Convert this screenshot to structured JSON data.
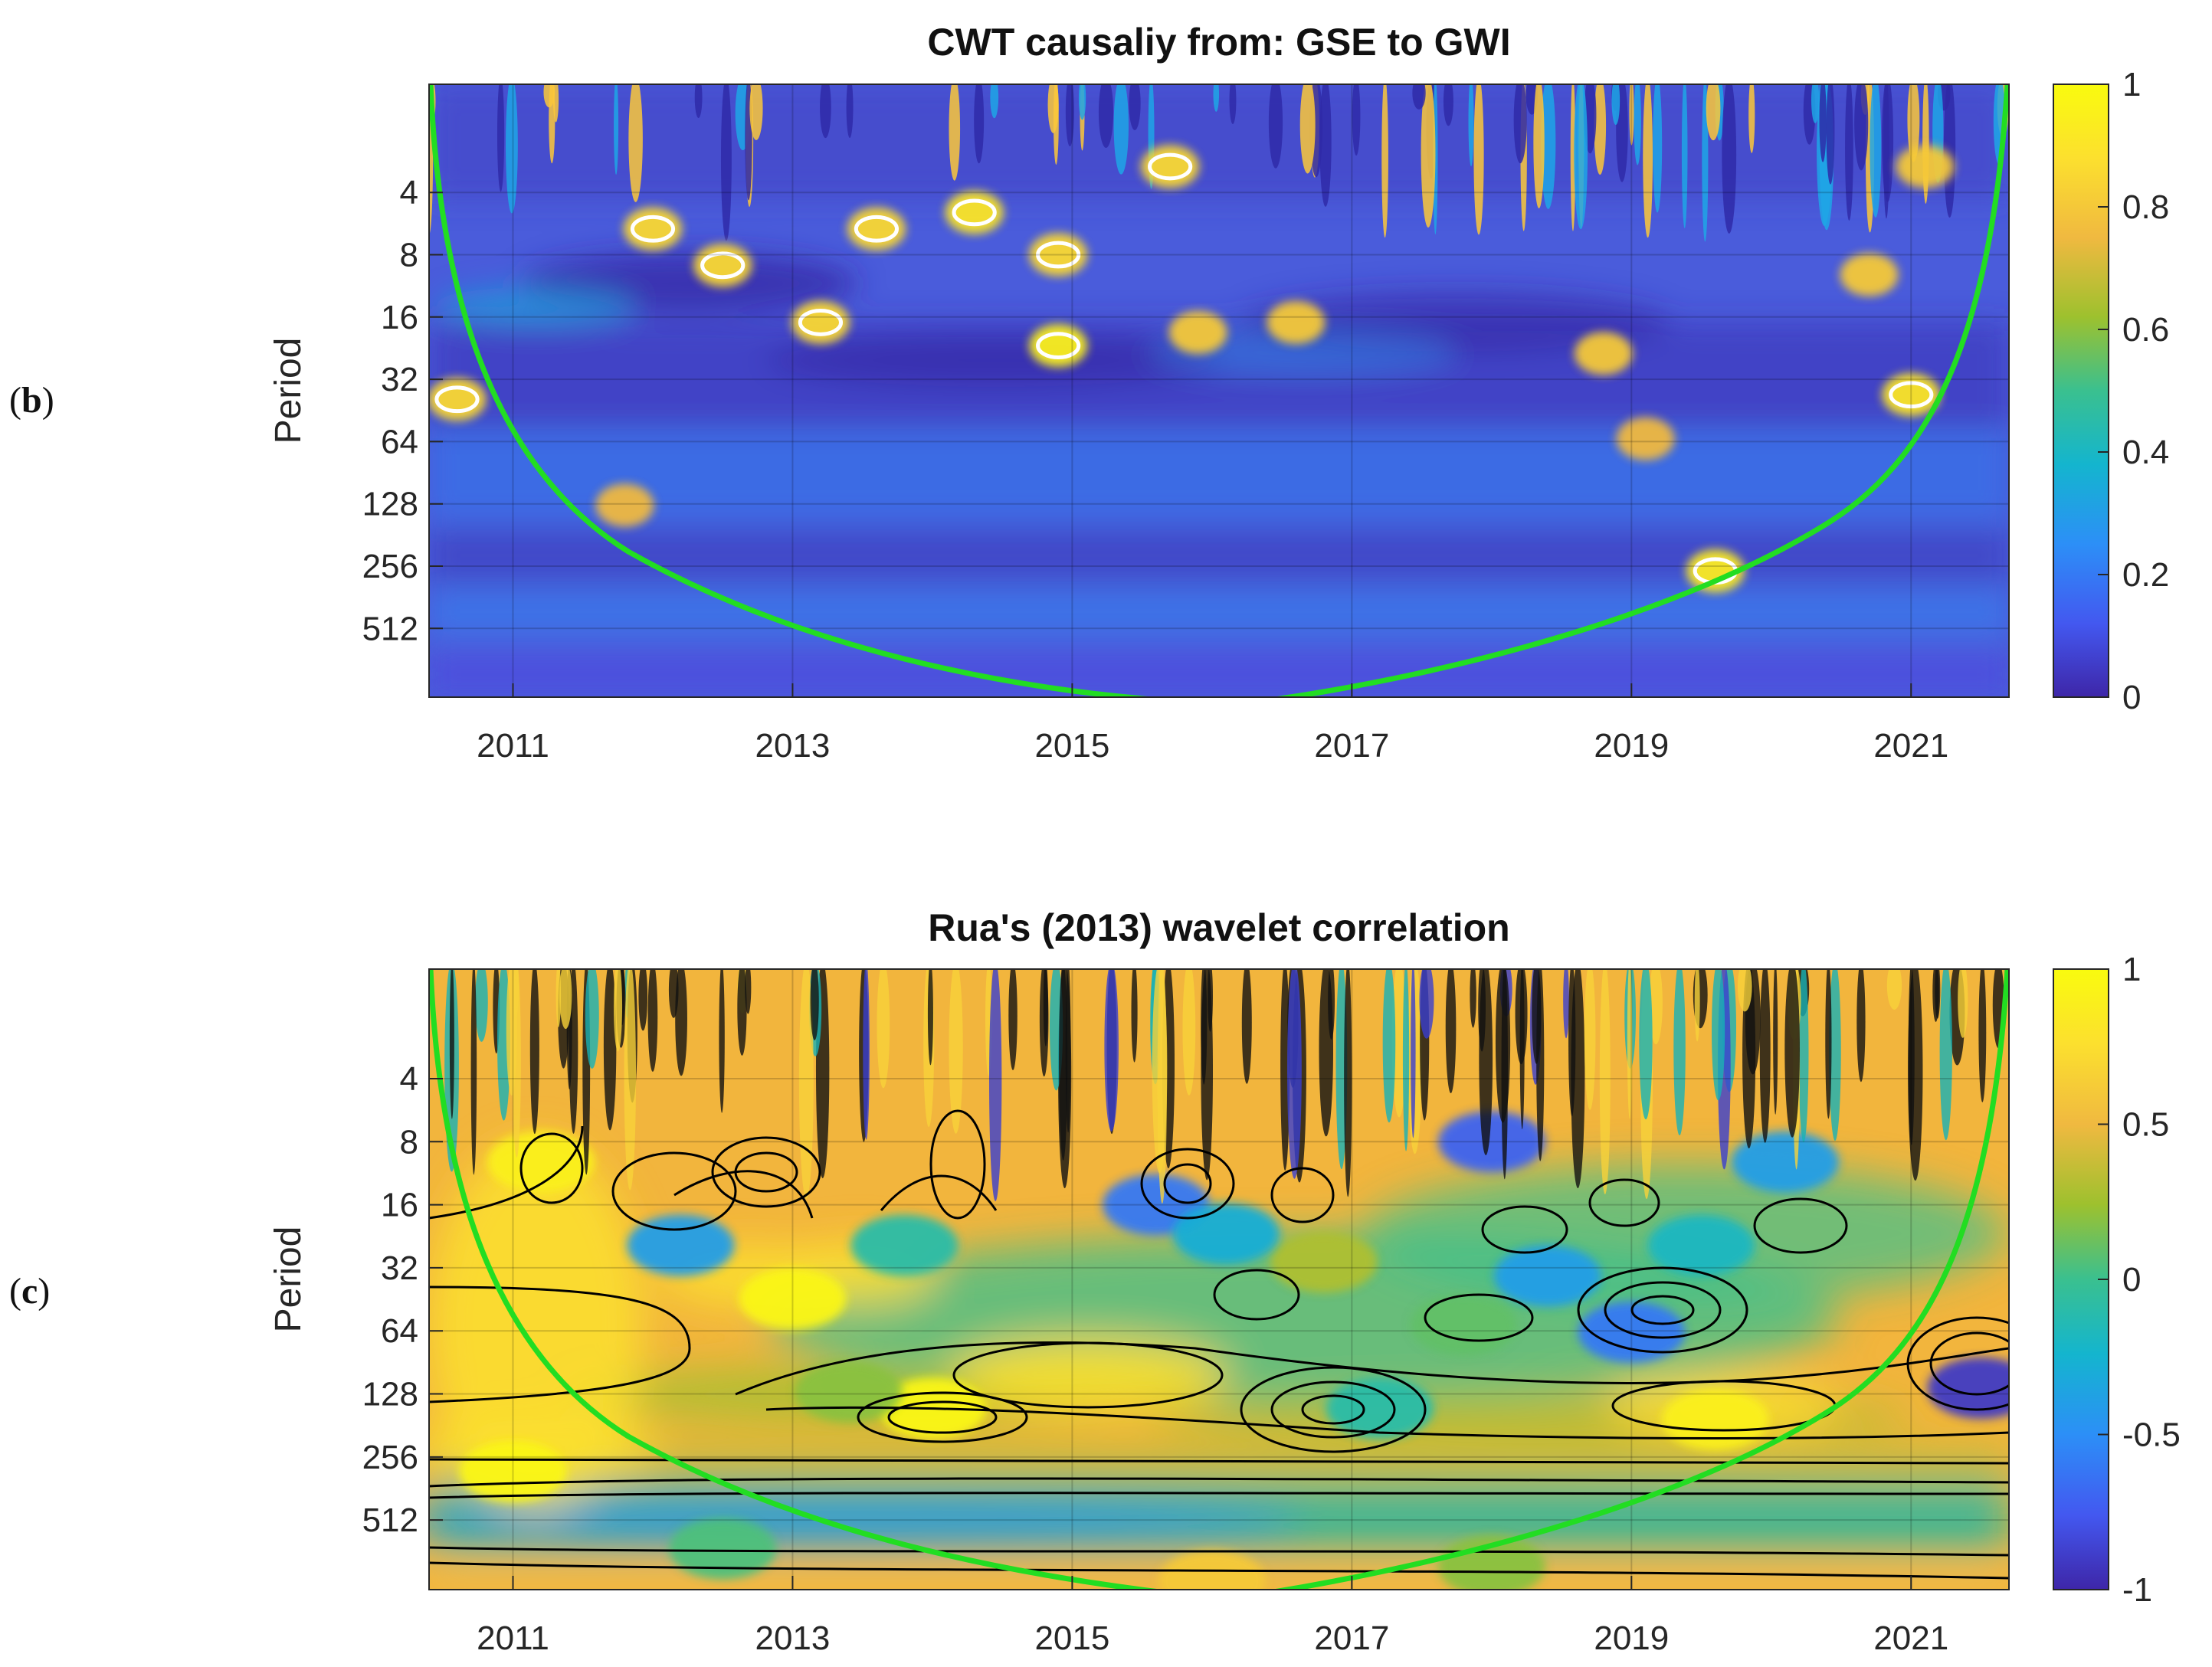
{
  "panels": [
    {
      "label_open": "(",
      "label_letter": "b",
      "label_close": ")"
    },
    {
      "label_open": "(",
      "label_letter": "c",
      "label_close": ")"
    }
  ],
  "chart_data": [
    {
      "type": "heatmap",
      "title": "CWT causaliy from: GSE to GWI",
      "xlabel": "",
      "ylabel": "Period",
      "xlim": [
        2010.4,
        2021.7
      ],
      "x_ticks": [
        "2011",
        "2013",
        "2015",
        "2017",
        "2019",
        "2021"
      ],
      "y_ticks": [
        "4",
        "8",
        "16",
        "32",
        "64",
        "128",
        "256",
        "512"
      ],
      "y_scale": "log2",
      "ylim_period": [
        1.2,
        1100
      ],
      "colorbar_ticks": [
        "0",
        "0.2",
        "0.4",
        "0.6",
        "0.8",
        "1"
      ],
      "colorbar_range": [
        0,
        1
      ],
      "colormap": [
        "#3e26a8",
        "#4358f0",
        "#2c8ff7",
        "#14b5ce",
        "#3ac08f",
        "#9dc12e",
        "#f0b940",
        "#fce02e",
        "#f9fb0e"
      ],
      "background_color": "#4a5cdb",
      "cone_color": "#22dd22",
      "significance_contour_color": "#ffffff",
      "hot_spots": [
        {
          "x": 2014.9,
          "period": 22,
          "value": 0.95
        },
        {
          "x": 2021.0,
          "period": 38,
          "value": 0.9
        },
        {
          "x": 2019.6,
          "period": 270,
          "value": 0.92
        },
        {
          "x": 2010.6,
          "period": 40,
          "value": 0.85
        },
        {
          "x": 2013.2,
          "period": 17,
          "value": 0.85
        },
        {
          "x": 2016.6,
          "period": 17,
          "value": 0.8
        },
        {
          "x": 2015.9,
          "period": 19,
          "value": 0.8
        },
        {
          "x": 2018.8,
          "period": 24,
          "value": 0.8
        },
        {
          "x": 2019.1,
          "period": 62,
          "value": 0.75
        },
        {
          "x": 2011.8,
          "period": 130,
          "value": 0.75
        },
        {
          "x": 2012.5,
          "period": 9,
          "value": 0.85
        },
        {
          "x": 2012.0,
          "period": 6,
          "value": 0.85
        },
        {
          "x": 2014.3,
          "period": 5,
          "value": 0.9
        },
        {
          "x": 2014.9,
          "period": 8,
          "value": 0.85
        },
        {
          "x": 2013.6,
          "period": 6,
          "value": 0.85
        },
        {
          "x": 2015.7,
          "period": 3,
          "value": 0.85
        },
        {
          "x": 2021.1,
          "period": 3,
          "value": 0.8
        },
        {
          "x": 2020.7,
          "period": 10,
          "value": 0.8
        }
      ]
    },
    {
      "type": "heatmap",
      "title": "Rua's (2013) wavelet correlation",
      "xlabel": "",
      "ylabel": "Period",
      "xlim": [
        2010.4,
        2021.7
      ],
      "x_ticks": [
        "2011",
        "2013",
        "2015",
        "2017",
        "2019",
        "2021"
      ],
      "y_ticks": [
        "4",
        "8",
        "16",
        "32",
        "64",
        "128",
        "256",
        "512"
      ],
      "y_scale": "log2",
      "ylim_period": [
        1.2,
        1100
      ],
      "colorbar_ticks": [
        "-1",
        "-0.5",
        "0",
        "0.5",
        "1"
      ],
      "colorbar_range": [
        -1,
        1
      ],
      "colormap": [
        "#3e26a8",
        "#4358f0",
        "#2c8ff7",
        "#14b5ce",
        "#3ac08f",
        "#9dc12e",
        "#f0b940",
        "#fce02e",
        "#f9fb0e"
      ],
      "background_color": "#f2b53d",
      "cone_color": "#22dd22",
      "contour_line_color": "#000000",
      "correlation_regions": [
        {
          "x": 2014.0,
          "period": 150,
          "value": 0.95
        },
        {
          "x": 2011.0,
          "period": 300,
          "value": 0.95
        },
        {
          "x": 2019.6,
          "period": 170,
          "value": 0.9
        },
        {
          "x": 2013.0,
          "period": 45,
          "value": 0.95
        },
        {
          "x": 2011.2,
          "period": 10,
          "value": 0.9
        },
        {
          "x": 2013.4,
          "period": 125,
          "value": 0.2
        },
        {
          "x": 2017.2,
          "period": 150,
          "value": -0.1
        },
        {
          "x": 2019.0,
          "period": 65,
          "value": -0.6
        },
        {
          "x": 2021.5,
          "period": 120,
          "value": -0.9
        },
        {
          "x": 2017.8,
          "period": 60,
          "value": 0.1
        },
        {
          "x": 2016.8,
          "period": 30,
          "value": 0.3
        },
        {
          "x": 2012.2,
          "period": 25,
          "value": -0.4
        },
        {
          "x": 2013.8,
          "period": 25,
          "value": -0.1
        },
        {
          "x": 2015.6,
          "period": 16,
          "value": -0.6
        },
        {
          "x": 2016.1,
          "period": 22,
          "value": -0.3
        },
        {
          "x": 2018.4,
          "period": 35,
          "value": -0.4
        },
        {
          "x": 2019.5,
          "period": 25,
          "value": -0.2
        },
        {
          "x": 2020.1,
          "period": 10,
          "value": -0.4
        },
        {
          "x": 2018.0,
          "period": 8,
          "value": -0.7
        },
        {
          "x": 2012.5,
          "period": 700,
          "value": 0.05
        },
        {
          "x": 2018.0,
          "period": 850,
          "value": 0.2
        },
        {
          "x": 2016.0,
          "period": 1000,
          "value": 0.6
        }
      ]
    }
  ]
}
